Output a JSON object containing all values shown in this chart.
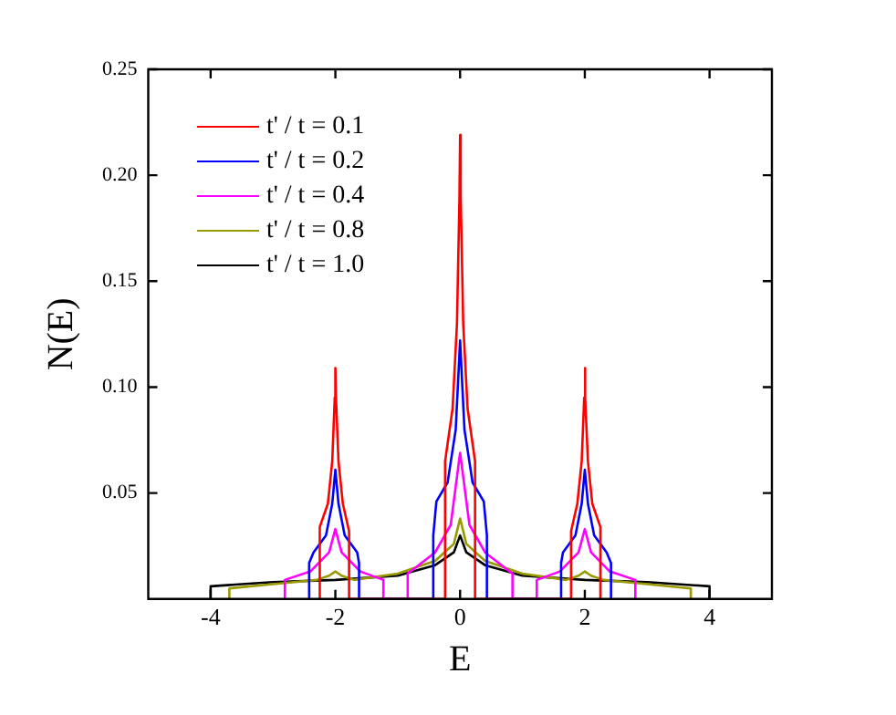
{
  "chart_data": {
    "type": "line",
    "xlabel": "E",
    "ylabel": "N(E)",
    "xlim": [
      -5,
      5
    ],
    "ylim": [
      0,
      0.25
    ],
    "xticks": [
      -4,
      -2,
      0,
      2,
      4
    ],
    "yticks": [
      0.05,
      {
        "value": 0.1,
        "label": "0.10"
      },
      0.15,
      {
        "value": 0.2,
        "label": "0.20"
      },
      0.25
    ],
    "grid": false,
    "legend": "top left",
    "marker": "none",
    "line_style": "solid",
    "series": [
      {
        "name": "t' / t = 0.1",
        "color": "#ff0000",
        "x": [
          -2.25,
          -2.25,
          -2.12,
          -2.05,
          -2.01,
          -2,
          -1.99,
          -1.95,
          -1.88,
          -1.78,
          -1.78,
          -0.24,
          -0.24,
          -0.12,
          -0.05,
          -0.01,
          0,
          0.01,
          0.05,
          0.12,
          0.24,
          0.24,
          1.78,
          1.78,
          1.88,
          1.95,
          1.99,
          2,
          2.01,
          2.05,
          2.12,
          2.25,
          2.25
        ],
        "values": [
          0,
          0.034,
          0.045,
          0.065,
          0.095,
          0.109,
          0.095,
          0.065,
          0.045,
          0.032,
          0,
          0,
          0.065,
          0.09,
          0.13,
          0.19,
          0.219,
          0.19,
          0.13,
          0.09,
          0.065,
          0,
          0,
          0.032,
          0.045,
          0.065,
          0.095,
          0.109,
          0.095,
          0.065,
          0.045,
          0.034,
          0
        ]
      },
      {
        "name": "t' / t = 0.2",
        "color": "#0000ff",
        "x": [
          -2.42,
          -2.42,
          -2.35,
          -2.15,
          -2.05,
          -2,
          -1.95,
          -1.85,
          -1.65,
          -1.62,
          -1.62,
          -0.43,
          -0.43,
          -0.38,
          -0.2,
          -0.07,
          0,
          0.07,
          0.2,
          0.38,
          0.43,
          0.43,
          1.62,
          1.62,
          1.65,
          1.85,
          1.95,
          2,
          2.05,
          2.15,
          2.35,
          2.42,
          2.42
        ],
        "values": [
          0,
          0.017,
          0.022,
          0.03,
          0.045,
          0.061,
          0.045,
          0.03,
          0.022,
          0.017,
          0,
          0,
          0.03,
          0.046,
          0.055,
          0.08,
          0.122,
          0.08,
          0.055,
          0.046,
          0.03,
          0,
          0,
          0.017,
          0.022,
          0.03,
          0.045,
          0.061,
          0.045,
          0.03,
          0.022,
          0.017,
          0
        ]
      },
      {
        "name": "t' / t = 0.4",
        "color": "#ff00ff",
        "x": [
          -2.81,
          -2.81,
          -2.4,
          -2.1,
          -2,
          -1.9,
          -1.6,
          -1.23,
          -1.23,
          -0.84,
          -0.84,
          -0.4,
          -0.15,
          0,
          0.15,
          0.4,
          0.84,
          0.84,
          1.23,
          1.23,
          1.6,
          1.9,
          2,
          2.1,
          2.4,
          2.81,
          2.81
        ],
        "values": [
          0,
          0.009,
          0.013,
          0.022,
          0.033,
          0.022,
          0.013,
          0.009,
          0,
          0,
          0.012,
          0.022,
          0.035,
          0.069,
          0.035,
          0.022,
          0.012,
          0,
          0,
          0.009,
          0.013,
          0.022,
          0.033,
          0.022,
          0.013,
          0.009,
          0
        ]
      },
      {
        "name": "t' / t = 0.8",
        "color": "#999900",
        "x": [
          -3.7,
          -3.7,
          -3,
          -2.3,
          -2.1,
          -2,
          -1.9,
          -1.7,
          -1,
          -0.4,
          -0.1,
          0,
          0.1,
          0.4,
          1,
          1.7,
          1.9,
          2,
          2.1,
          2.3,
          3,
          3.7,
          3.7
        ],
        "values": [
          0,
          0.005,
          0.007,
          0.009,
          0.011,
          0.013,
          0.011,
          0.009,
          0.012,
          0.018,
          0.026,
          0.038,
          0.026,
          0.018,
          0.012,
          0.009,
          0.011,
          0.013,
          0.011,
          0.009,
          0.007,
          0.005,
          0
        ]
      },
      {
        "name": "t' / t = 1.0",
        "color": "#000000",
        "x": [
          -4,
          -4,
          -3,
          -2,
          -1,
          -0.4,
          -0.1,
          0,
          0.1,
          0.4,
          1,
          2,
          3,
          4,
          4
        ],
        "values": [
          0,
          0.006,
          0.008,
          0.009,
          0.011,
          0.016,
          0.022,
          0.03,
          0.022,
          0.016,
          0.011,
          0.009,
          0.008,
          0.006,
          0
        ]
      }
    ]
  }
}
